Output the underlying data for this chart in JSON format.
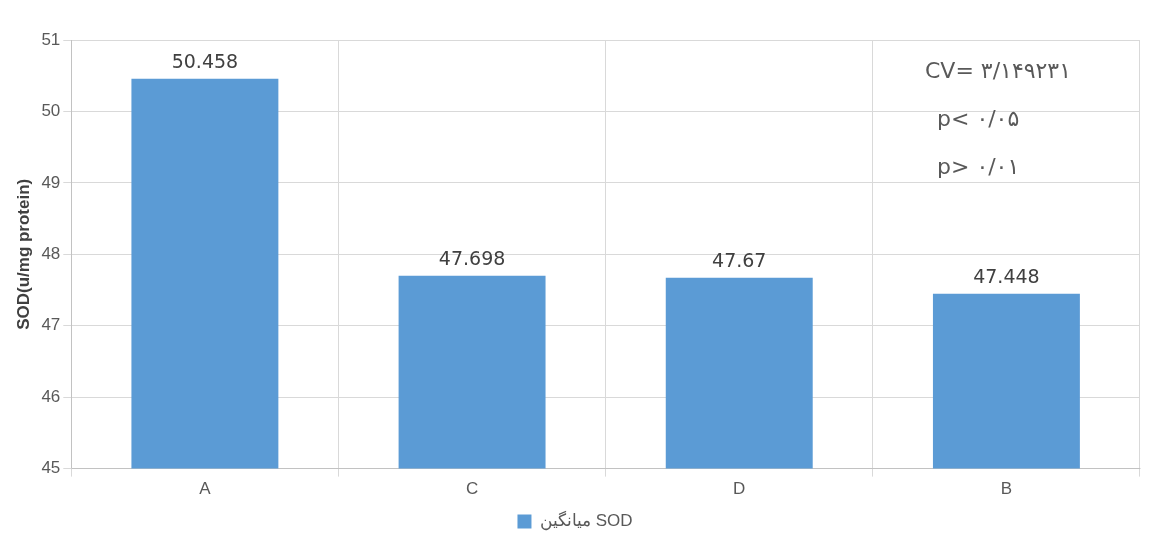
{
  "chart_data": {
    "type": "bar",
    "ylabel": "SOD(u/mg protein)",
    "categories": [
      "A",
      "C",
      "D",
      "B"
    ],
    "series": [
      {
        "name": "میانگین SOD",
        "color": "#5b9bd5",
        "values": [
          50.458,
          47.698,
          47.67,
          47.448
        ]
      }
    ],
    "ylim": [
      45,
      51
    ],
    "yticks": [
      45,
      46,
      47,
      48,
      49,
      50,
      51
    ],
    "grid": true,
    "legend": "bottom",
    "data_labels": true,
    "annotations": [
      "CV= ۳/۱۴۹۲۳۱",
      "p< ۰/۰۵",
      "p> ۰/۰۱"
    ]
  }
}
